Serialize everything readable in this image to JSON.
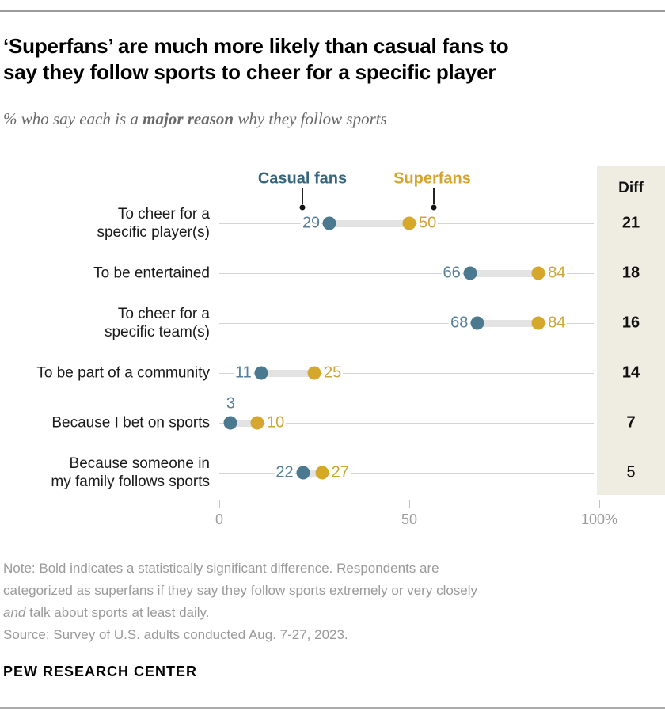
{
  "header": {
    "title_line1": "‘Superfans’ are much more likely than casual fans to",
    "title_line2": "say they follow sports to cheer for a specific player",
    "subtitle_prefix": "% who say each is a ",
    "subtitle_emphasis": "major reason",
    "subtitle_suffix": " why they follow sports"
  },
  "colors": {
    "casual_legend": "#36657e",
    "casual_value": "#54809b",
    "casual_dot": "#4a7990",
    "superfan_legend": "#d4a52c",
    "superfan_value": "#cfa53a",
    "superfan_dot": "#d5a72d",
    "diff_panel_bg": "#efede2",
    "gridline": "#d4d4d4",
    "connector": "#e3e3e3"
  },
  "chart_data": {
    "type": "dumbbell",
    "legend": [
      {
        "name": "Casual fans",
        "color": "#36657e"
      },
      {
        "name": "Superfans",
        "color": "#d4a52c"
      }
    ],
    "categories": [
      "To cheer for a\nspecific player(s)",
      "To be entertained",
      "To cheer for a\nspecific team(s)",
      "To be part of a community",
      "Because I bet on sports",
      "Because someone in\nmy family follows sports"
    ],
    "series": [
      {
        "name": "Casual fans",
        "values": [
          29,
          66,
          68,
          11,
          3,
          22
        ]
      },
      {
        "name": "Superfans",
        "values": [
          50,
          84,
          84,
          25,
          10,
          27
        ]
      }
    ],
    "diff": {
      "label": "Diff",
      "values": [
        21,
        18,
        16,
        14,
        7,
        5
      ],
      "bold": [
        true,
        true,
        true,
        true,
        true,
        false
      ]
    },
    "axis": {
      "range": [
        0,
        100
      ],
      "ticks": [
        0,
        50,
        100
      ],
      "tick_labels": [
        "0",
        "50",
        "100%"
      ]
    },
    "layout": {
      "legend_position": "top",
      "grid": "horizontal-row-lines",
      "diff_column": "right",
      "casual_label_above_rows": [
        4
      ]
    }
  },
  "footnotes": {
    "note_line1": "Note: Bold indicates a statistically significant difference. Respondents are",
    "note_line2": "categorized as superfans if they say they follow sports extremely or very closely",
    "note_line3_italic": "and",
    "note_line3_rest": " talk about sports at least daily.",
    "source": "Source: Survey of U.S. adults conducted Aug. 7-27, 2023.",
    "brand": "PEW RESEARCH CENTER"
  }
}
